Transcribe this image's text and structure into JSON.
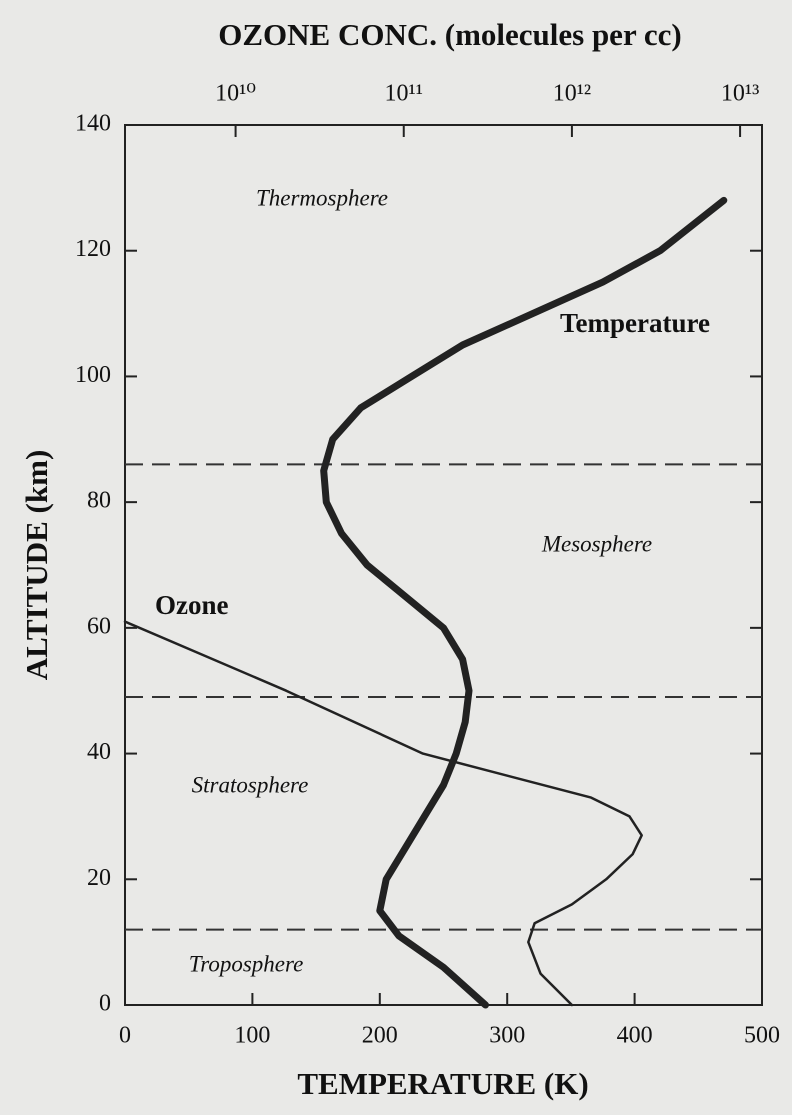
{
  "chart_data": {
    "type": "line",
    "title": "OZONE CONC.  (molecules per cc)",
    "xlabel": "TEMPERATURE (K)",
    "ylabel": "ALTITUDE  (km)",
    "xlim": [
      0,
      500
    ],
    "xticks": [
      0,
      100,
      200,
      300,
      400,
      500
    ],
    "x2lim": [
      2200000000,
      13500000000000
    ],
    "x2scale": "log",
    "x2ticks": [
      {
        "value": 10000000000,
        "label": "10¹⁰"
      },
      {
        "value": 100000000000,
        "label": "10¹¹"
      },
      {
        "value": 1000000000000,
        "label": "10¹²"
      },
      {
        "value": 10000000000000,
        "label": "10¹³"
      }
    ],
    "ylim": [
      0,
      140
    ],
    "yticks": [
      0,
      20,
      40,
      60,
      80,
      100,
      120,
      140
    ],
    "boundaries": [
      12,
      49,
      86
    ],
    "regions": [
      "Thermosphere",
      "Mesosphere",
      "Stratosphere",
      "Troposphere"
    ],
    "series": [
      {
        "name": "Temperature",
        "color": "#222222",
        "x": [
          283,
          250,
          215,
          200,
          205,
          220,
          235,
          250,
          260,
          267,
          270,
          265,
          250,
          220,
          190,
          170,
          158,
          156,
          163,
          185,
          225,
          265,
          320,
          375,
          420,
          470
        ],
        "values": [
          0,
          6,
          11,
          15,
          20,
          25,
          30,
          35,
          40,
          45,
          50,
          55,
          60,
          65,
          70,
          75,
          80,
          85,
          90,
          95,
          100,
          105,
          110,
          115,
          120,
          128
        ]
      },
      {
        "name": "Ozone",
        "color": "#222222",
        "axis": "x2",
        "x": [
          1000000000000,
          650000000000,
          550000000000,
          600000000000,
          1000000000000,
          1600000000000,
          2300000000000,
          2600000000000,
          2200000000000,
          1300000000000,
          130000000000,
          20000000000,
          2200000000
        ],
        "values": [
          0,
          5,
          10,
          13,
          16,
          20,
          24,
          27,
          30,
          33,
          40,
          50,
          61
        ]
      }
    ]
  }
}
